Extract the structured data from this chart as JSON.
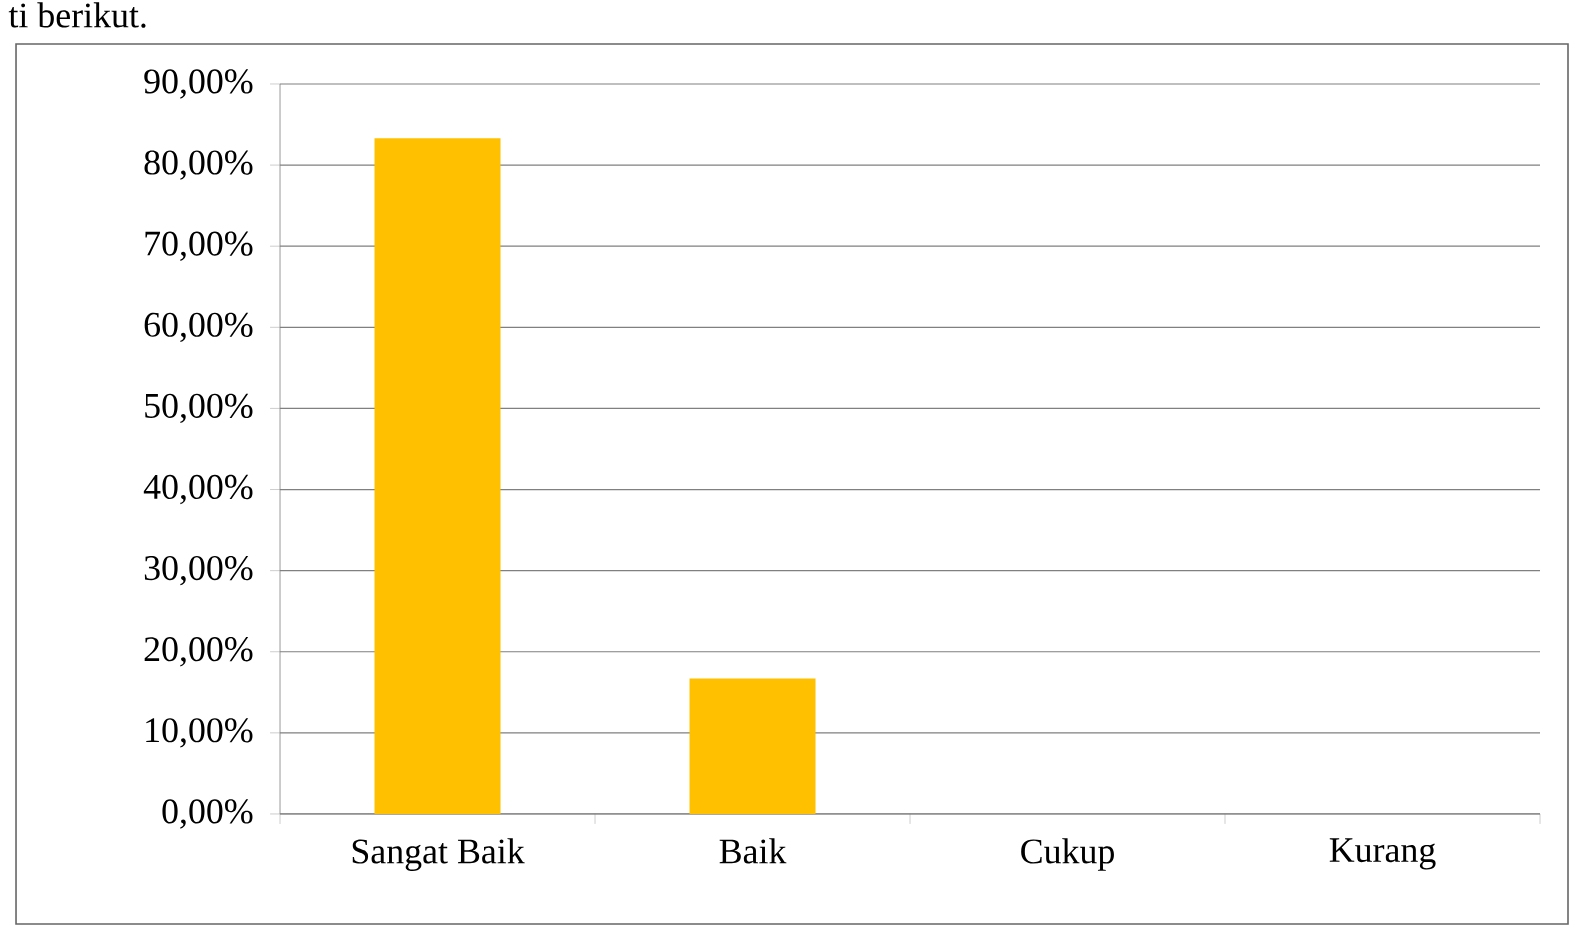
{
  "chart_data": {
    "type": "bar",
    "annotations": [
      "ti berikut."
    ],
    "categories": [
      "Sangat Baik",
      "Baik",
      "Cukup",
      "Kurang"
    ],
    "values": [
      83.3,
      16.7,
      0,
      0
    ],
    "color": "#ffc000",
    "ylim": [
      0,
      90
    ],
    "yticks": [
      {
        "value": 0,
        "label": "0,00%"
      },
      {
        "value": 10,
        "label": "10,00%"
      },
      {
        "value": 20,
        "label": "20,00%"
      },
      {
        "value": 30,
        "label": "30,00%"
      },
      {
        "value": 40,
        "label": "40,00%"
      },
      {
        "value": 50,
        "label": "50,00%"
      },
      {
        "value": 60,
        "label": "60,00%"
      },
      {
        "value": 70,
        "label": "70,00%"
      },
      {
        "value": 80,
        "label": "80,00%"
      },
      {
        "value": 90,
        "label": "90,00%"
      }
    ],
    "grid": "y"
  }
}
